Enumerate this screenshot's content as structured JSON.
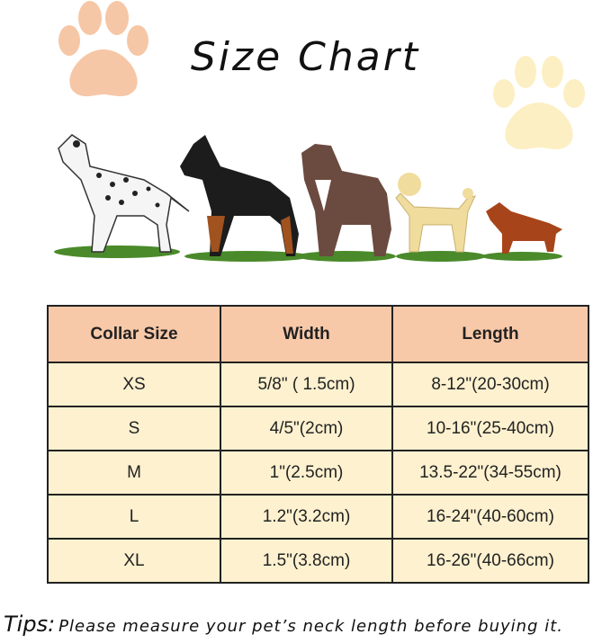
{
  "title": "Size Chart",
  "colors": {
    "header_bg": "#f8c9a8",
    "row_bg": "#fdf1cf",
    "paw_left": "#f6c7a6",
    "paw_right": "#fcefc3"
  },
  "table": {
    "headers": [
      "Collar Size",
      "Width",
      "Length"
    ],
    "rows": [
      [
        "XS",
        "5/8\" ( 1.5cm)",
        "8-12\"(20-30cm)"
      ],
      [
        "S",
        "4/5\"(2cm)",
        "10-16\"(25-40cm)"
      ],
      [
        "M",
        "1\"(2.5cm)",
        "13.5-22\"(34-55cm)"
      ],
      [
        "L",
        "1.2\"(3.2cm)",
        "16-24\"(40-60cm)"
      ],
      [
        "XL",
        "1.5\"(3.8cm)",
        "16-26\"(40-66cm)"
      ]
    ]
  },
  "tips": {
    "label": "Tips:",
    "text": "Please measure your pet’s neck length before buying it."
  },
  "illustrations": [
    "paw-print",
    "dalmatian",
    "doberman",
    "pit-bull",
    "poodle",
    "dachshund"
  ]
}
